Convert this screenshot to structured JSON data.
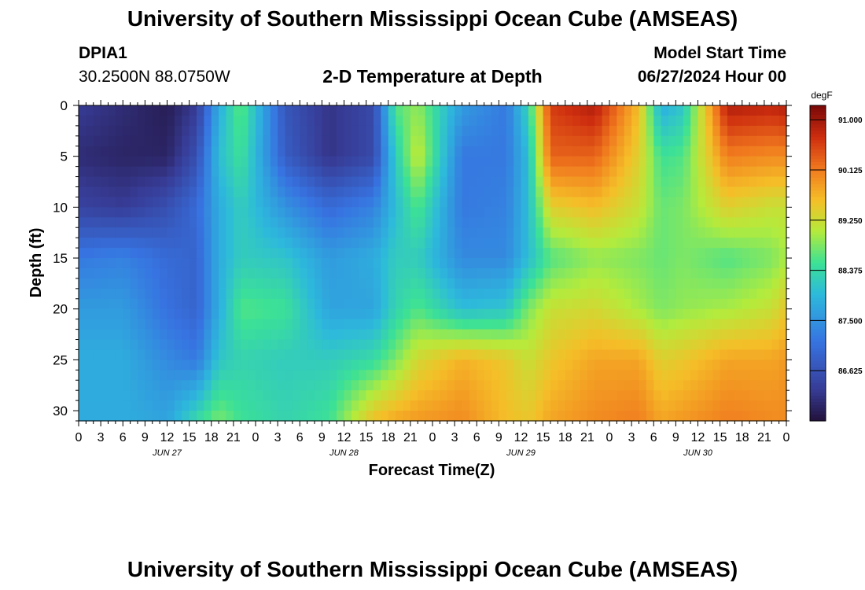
{
  "header": {
    "title": "University of Southern Mississippi Ocean Cube (AMSEAS)",
    "station_id": "DPIA1",
    "coordinates": "30.2500N  88.0750W",
    "subtitle": "2-D Temperature at Depth",
    "model_start_label": "Model Start Time",
    "model_start_value": "06/27/2024 Hour 00",
    "bottom_title": "University of Southern Mississippi Ocean Cube (AMSEAS)"
  },
  "chart_data": {
    "type": "heatmap",
    "title": "2-D Temperature at Depth",
    "xlabel": "Forecast Time(Z)",
    "ylabel": "Depth (ft)",
    "x_unit": "hours from 06/27/2024 00Z",
    "x_range": [
      0,
      96
    ],
    "x_tick_labels": [
      "0",
      "3",
      "6",
      "9",
      "12",
      "15",
      "18",
      "21",
      "0",
      "3",
      "6",
      "9",
      "12",
      "15",
      "18",
      "21",
      "0",
      "3",
      "6",
      "9",
      "12",
      "15",
      "18",
      "21",
      "0",
      "3",
      "6",
      "9",
      "12",
      "15",
      "18",
      "21",
      "0"
    ],
    "date_labels": [
      "JUN 27",
      "JUN 28",
      "JUN 29",
      "JUN 30"
    ],
    "y_range": [
      0,
      31
    ],
    "y_ticks": [
      0,
      5,
      10,
      15,
      20,
      25,
      30
    ],
    "colorbar": {
      "unit": "degF",
      "range": [
        85.75,
        91.25
      ],
      "tick_values": [
        91.0,
        90.125,
        89.25,
        88.375,
        87.5,
        86.625
      ],
      "tick_labels": [
        "91.000",
        "90.125",
        "89.250",
        "88.375",
        "87.500",
        "86.625"
      ]
    },
    "depths_ft": [
      0,
      5,
      10,
      15,
      20,
      25,
      31
    ],
    "times_hr": [
      0,
      6,
      12,
      16,
      19,
      22,
      28,
      34,
      40,
      43,
      46,
      52,
      58,
      61,
      64,
      70,
      76,
      79,
      82,
      88,
      94,
      96
    ],
    "values_degF": [
      [
        86.3,
        86.1,
        85.9,
        86.3,
        87.8,
        88.7,
        86.7,
        86.2,
        86.5,
        88.6,
        88.9,
        87.6,
        87.2,
        88.3,
        90.6,
        90.9,
        89.6,
        87.8,
        88.1,
        90.9,
        90.8,
        90.9
      ],
      [
        86.1,
        86.0,
        86.0,
        86.6,
        88.0,
        88.5,
        86.8,
        86.2,
        86.5,
        88.2,
        89.2,
        87.2,
        87.2,
        88.0,
        90.3,
        90.3,
        89.4,
        88.5,
        88.6,
        90.1,
        90.0,
        90.0
      ],
      [
        86.4,
        86.3,
        86.6,
        87.0,
        87.8,
        88.2,
        87.5,
        87.0,
        87.3,
        88.0,
        88.6,
        87.2,
        87.3,
        88.0,
        89.4,
        89.6,
        89.2,
        88.7,
        88.8,
        89.4,
        89.2,
        89.2
      ],
      [
        87.2,
        87.3,
        87.0,
        86.9,
        87.8,
        88.2,
        88.1,
        87.6,
        87.8,
        88.2,
        88.2,
        87.4,
        87.4,
        88.0,
        88.6,
        88.9,
        88.8,
        88.7,
        88.8,
        88.6,
        88.8,
        89.0
      ],
      [
        87.6,
        87.6,
        87.1,
        86.9,
        87.8,
        88.6,
        88.5,
        87.7,
        87.7,
        88.3,
        88.6,
        88.0,
        88.1,
        88.8,
        89.2,
        89.3,
        89.0,
        88.8,
        88.9,
        89.0,
        89.2,
        89.5
      ],
      [
        87.8,
        87.8,
        87.4,
        87.2,
        88.1,
        88.3,
        88.2,
        88.2,
        88.4,
        88.8,
        89.3,
        89.7,
        89.5,
        89.2,
        89.5,
        89.8,
        89.8,
        89.4,
        89.5,
        89.8,
        89.8,
        89.9
      ],
      [
        87.8,
        87.8,
        87.7,
        88.4,
        88.8,
        88.5,
        88.3,
        88.5,
        89.6,
        89.8,
        89.9,
        90.0,
        89.6,
        89.5,
        89.8,
        90.0,
        90.1,
        89.8,
        89.9,
        90.1,
        90.0,
        90.0
      ]
    ]
  }
}
